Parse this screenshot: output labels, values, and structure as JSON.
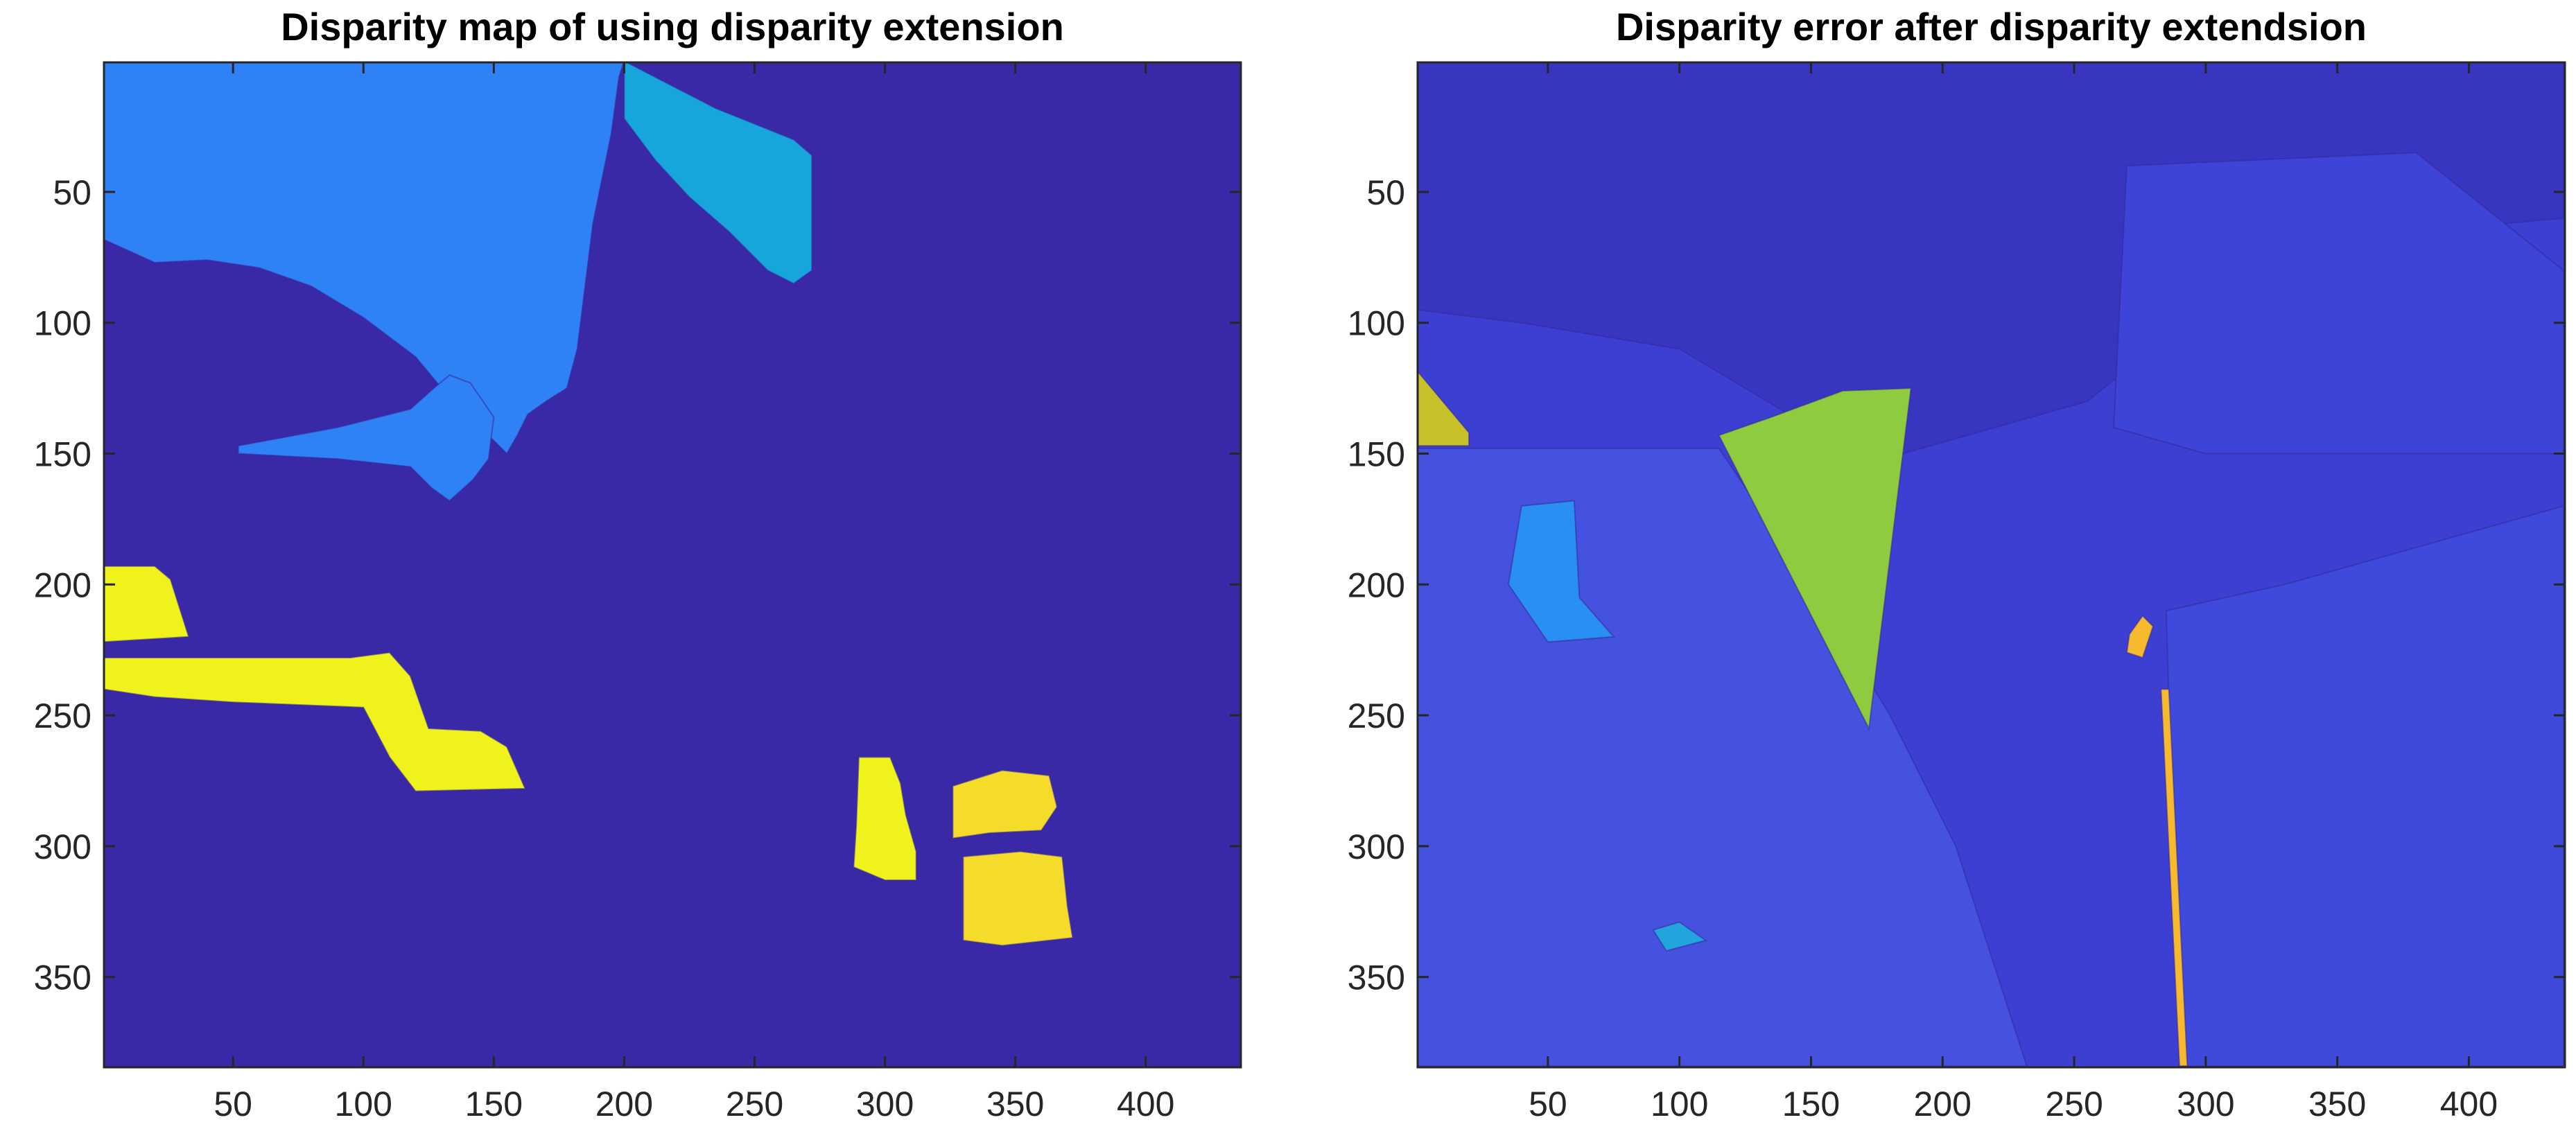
{
  "chart_data": [
    {
      "type": "heatmap",
      "title": "Disparity map of using disparity extension",
      "x_range": [
        0.5,
        436.5
      ],
      "y_range": [
        0.5,
        384.5
      ],
      "y_reversed": true,
      "x_ticks": [
        50,
        100,
        150,
        200,
        250,
        300,
        350,
        400
      ],
      "y_ticks": [
        50,
        100,
        150,
        200,
        250,
        300,
        350
      ],
      "colormap": "parula",
      "background_color": "#3a29a7",
      "regions": [
        {
          "label": "upper-left-light-blue",
          "color": "#2f82f6",
          "points": [
            [
              0,
              0
            ],
            [
              200,
              0
            ],
            [
              198,
              6
            ],
            [
              195,
              28
            ],
            [
              188,
              62
            ],
            [
              182,
              110
            ],
            [
              178,
              125
            ],
            [
              170,
              130
            ],
            [
              163,
              135
            ],
            [
              159,
              143
            ],
            [
              155,
              150
            ],
            [
              150,
              145
            ],
            [
              142,
              138
            ],
            [
              130,
              125
            ],
            [
              120,
              113
            ],
            [
              100,
              98
            ],
            [
              80,
              86
            ],
            [
              60,
              79
            ],
            [
              40,
              76
            ],
            [
              20,
              77
            ],
            [
              0,
              68
            ]
          ]
        },
        {
          "label": "upper-cyan-wedge",
          "color": "#17a6db",
          "points": [
            [
              200,
              0
            ],
            [
              235,
              18
            ],
            [
              265,
              30
            ],
            [
              272,
              36
            ],
            [
              272,
              80
            ],
            [
              265,
              85
            ],
            [
              255,
              80
            ],
            [
              240,
              65
            ],
            [
              225,
              52
            ],
            [
              212,
              38
            ],
            [
              200,
              22
            ]
          ]
        },
        {
          "label": "mid-blue-spit",
          "color": "#2f82f6",
          "points": [
            [
              52,
              147
            ],
            [
              90,
              140
            ],
            [
              118,
              133
            ],
            [
              127,
              125
            ],
            [
              133,
              120
            ],
            [
              141,
              123
            ],
            [
              150,
              136
            ],
            [
              148,
              152
            ],
            [
              142,
              160
            ],
            [
              133,
              168
            ],
            [
              126,
              163
            ],
            [
              118,
              155
            ],
            [
              90,
              152
            ],
            [
              52,
              150
            ]
          ]
        },
        {
          "label": "left-top-yellow",
          "color": "#f0f21b",
          "points": [
            [
              0,
              193
            ],
            [
              20,
              193
            ],
            [
              26,
              198
            ],
            [
              33,
              220
            ],
            [
              0,
              222
            ]
          ]
        },
        {
          "label": "left-yellow-band",
          "color": "#f0f21b",
          "points": [
            [
              0,
              228
            ],
            [
              95,
              228
            ],
            [
              110,
              226
            ],
            [
              118,
              235
            ],
            [
              125,
              255
            ],
            [
              145,
              256
            ],
            [
              155,
              262
            ],
            [
              162,
              278
            ],
            [
              120,
              279
            ],
            [
              110,
              266
            ],
            [
              100,
              247
            ],
            [
              50,
              245
            ],
            [
              20,
              243
            ],
            [
              0,
              240
            ]
          ]
        },
        {
          "label": "center-yellow-blob",
          "color": "#f0f21b",
          "points": [
            [
              290,
              266
            ],
            [
              302,
              266
            ],
            [
              306,
              276
            ],
            [
              308,
              288
            ],
            [
              312,
              302
            ],
            [
              312,
              313
            ],
            [
              300,
              313
            ],
            [
              288,
              308
            ],
            [
              289,
              292
            ]
          ]
        },
        {
          "label": "right-top-yellow-blob",
          "color": "#f5dc2a",
          "points": [
            [
              326,
              277
            ],
            [
              345,
              271
            ],
            [
              363,
              273
            ],
            [
              366,
              285
            ],
            [
              360,
              294
            ],
            [
              340,
              295
            ],
            [
              326,
              297
            ]
          ]
        },
        {
          "label": "right-bottom-yellow-blob",
          "color": "#f5dc2a",
          "points": [
            [
              330,
              304
            ],
            [
              352,
              302
            ],
            [
              368,
              304
            ],
            [
              370,
              323
            ],
            [
              372,
              335
            ],
            [
              345,
              338
            ],
            [
              330,
              336
            ]
          ]
        }
      ]
    },
    {
      "type": "heatmap",
      "title": "Disparity error after disparity extendsion",
      "x_range": [
        0.5,
        436.5
      ],
      "y_range": [
        0.5,
        384.5
      ],
      "y_reversed": true,
      "x_ticks": [
        50,
        100,
        150,
        200,
        250,
        300,
        350,
        400
      ],
      "y_ticks": [
        50,
        100,
        150,
        200,
        250,
        300,
        350
      ],
      "colormap": "parula",
      "background_color": "#3d3fd2",
      "regions": [
        {
          "label": "upper-dark-zone",
          "color": "#3835c0",
          "points": [
            [
              0,
              0
            ],
            [
              436,
              0
            ],
            [
              436,
              60
            ],
            [
              330,
              70
            ],
            [
              255,
              130
            ],
            [
              185,
              150
            ],
            [
              150,
              140
            ],
            [
              100,
              110
            ],
            [
              40,
              100
            ],
            [
              0,
              95
            ]
          ]
        },
        {
          "label": "upper-right-mid-zone",
          "color": "#3e44d8",
          "points": [
            [
              270,
              40
            ],
            [
              380,
              35
            ],
            [
              436,
              80
            ],
            [
              436,
              150
            ],
            [
              380,
              150
            ],
            [
              300,
              150
            ],
            [
              265,
              140
            ]
          ]
        },
        {
          "label": "lower-left-stripe-zone",
          "color": "#4452df",
          "points": [
            [
              0,
              148
            ],
            [
              115,
              148
            ],
            [
              150,
              200
            ],
            [
              180,
              250
            ],
            [
              205,
              300
            ],
            [
              232,
              384
            ],
            [
              0,
              384
            ]
          ]
        },
        {
          "label": "lower-right-column-zone",
          "color": "#3f49db",
          "points": [
            [
              285,
              210
            ],
            [
              330,
              200
            ],
            [
              436,
              170
            ],
            [
              436,
              384
            ],
            [
              290,
              384
            ]
          ]
        },
        {
          "label": "left-cyan-patch",
          "color": "#2a8ff2",
          "points": [
            [
              40,
              170
            ],
            [
              60,
              168
            ],
            [
              62,
              205
            ],
            [
              75,
              220
            ],
            [
              50,
              222
            ],
            [
              35,
              200
            ]
          ]
        },
        {
          "label": "left-olive-wedge",
          "color": "#c8c22a",
          "points": [
            [
              0,
              118
            ],
            [
              20,
              142
            ],
            [
              20,
              147
            ],
            [
              0,
              147
            ]
          ]
        },
        {
          "label": "green-triangle",
          "color": "#8fcb3e",
          "points": [
            [
              115,
              143
            ],
            [
              135,
              136
            ],
            [
              162,
              126
            ],
            [
              188,
              125
            ],
            [
              172,
              255
            ]
          ]
        },
        {
          "label": "orange-vertical-line",
          "color": "#f7b92e",
          "points": [
            [
              283,
              240
            ],
            [
              286,
              240
            ],
            [
              293,
              384
            ],
            [
              290,
              384
            ]
          ]
        },
        {
          "label": "orange-small-speck",
          "color": "#f7b92e",
          "points": [
            [
              271,
              219
            ],
            [
              276,
              212
            ],
            [
              280,
              216
            ],
            [
              276,
              228
            ],
            [
              270,
              226
            ]
          ]
        },
        {
          "label": "bottom-left-cyan-speck",
          "color": "#22a5dd",
          "points": [
            [
              90,
              332
            ],
            [
              100,
              329
            ],
            [
              110,
              336
            ],
            [
              95,
              340
            ]
          ]
        }
      ]
    }
  ]
}
